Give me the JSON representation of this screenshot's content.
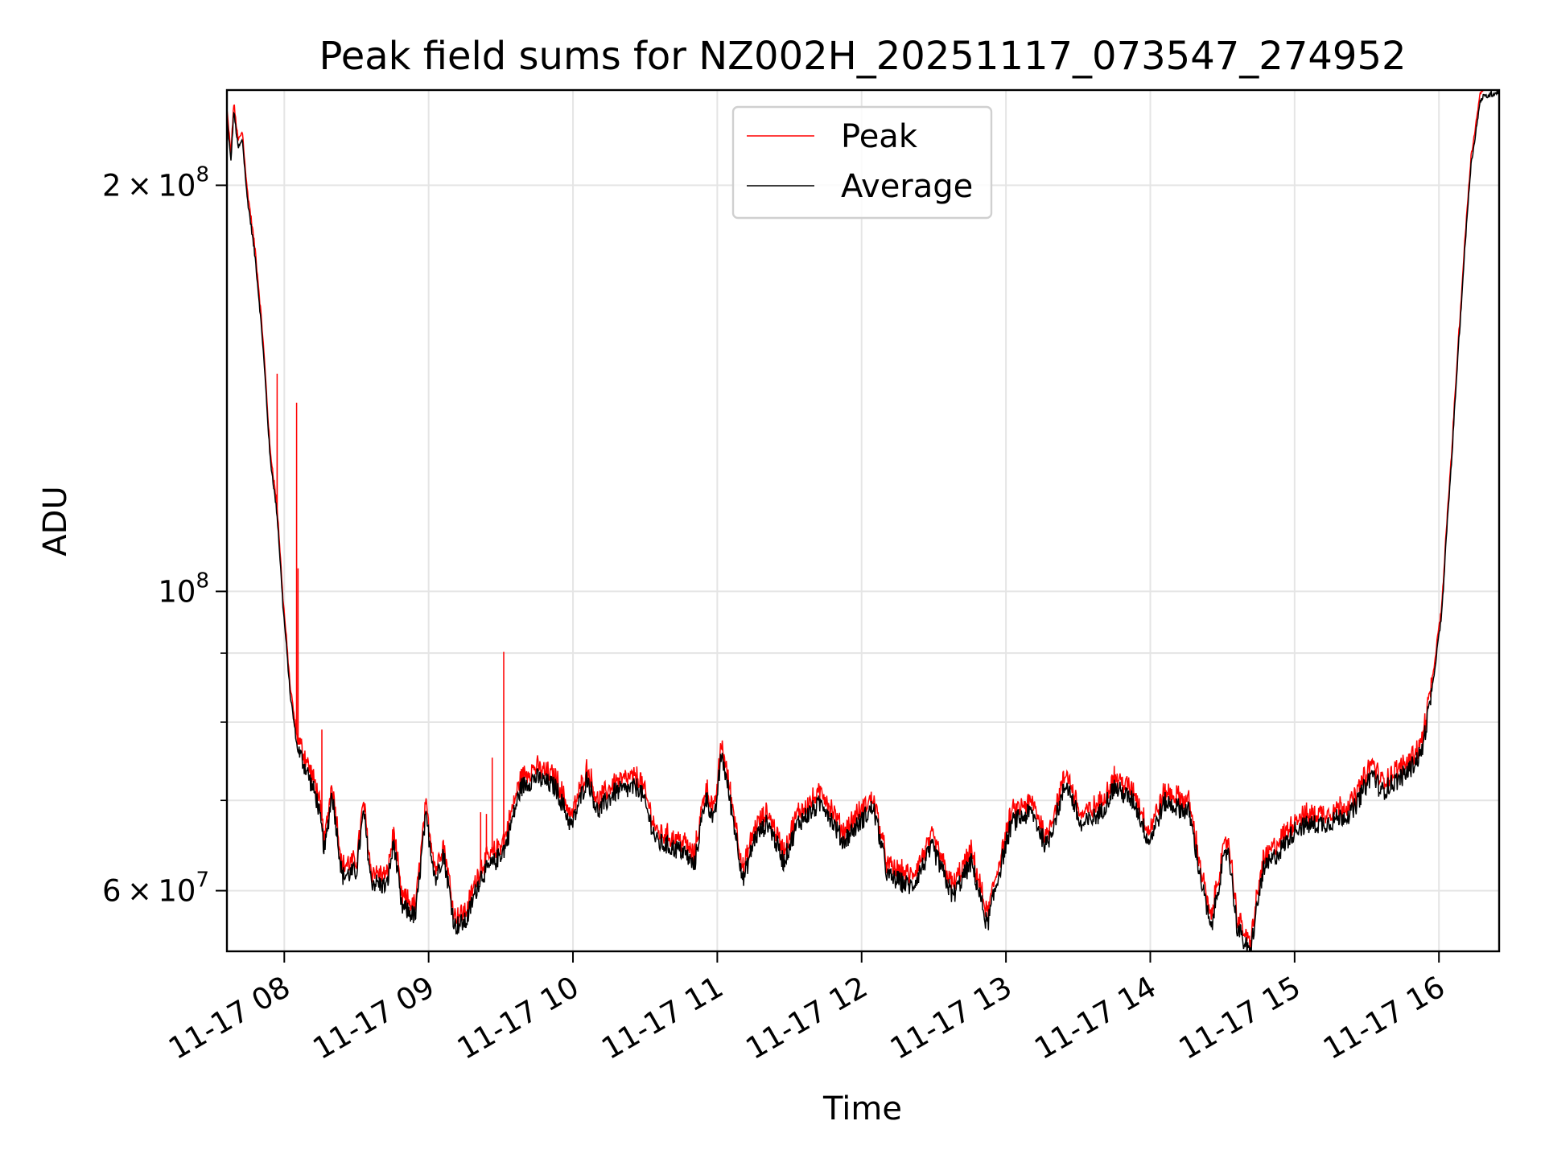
{
  "chart_data": {
    "type": "line",
    "title": "Peak field sums for NZ002H_20251117_073547_274952",
    "xlabel": "Time",
    "ylabel": "ADU",
    "yscale": "log",
    "x_unit": "hours (2025-11-17)",
    "xlim": [
      7.6025,
      16.417
    ],
    "ylim": [
      54100000,
      235300000
    ],
    "grid": true,
    "legend_position": "top-center",
    "x_ticks": [
      {
        "value": 8,
        "label": "11-17 08"
      },
      {
        "value": 9,
        "label": "11-17 09"
      },
      {
        "value": 10,
        "label": "11-17 10"
      },
      {
        "value": 11,
        "label": "11-17 11"
      },
      {
        "value": 12,
        "label": "11-17 12"
      },
      {
        "value": 13,
        "label": "11-17 13"
      },
      {
        "value": 14,
        "label": "11-17 14"
      },
      {
        "value": 15,
        "label": "11-17 15"
      },
      {
        "value": 16,
        "label": "11-17 16"
      }
    ],
    "y_ticks": [
      {
        "value": 200000000,
        "mantissa": "2",
        "base": "10",
        "exp": "8"
      },
      {
        "value": 100000000,
        "mantissa": "",
        "base": "10",
        "exp": "8"
      },
      {
        "value": 60000000,
        "mantissa": "6",
        "base": "10",
        "exp": "7"
      }
    ],
    "y_minor_gridlines": [
      70000000,
      80000000,
      90000000
    ],
    "series": [
      {
        "name": "Peak",
        "color": "#ff0000",
        "relative_to_average": 1.012,
        "spikes": [
          [
            7.95,
            145000000
          ],
          [
            8.085,
            138000000
          ],
          [
            8.095,
            104000000
          ],
          [
            8.26,
            79000000
          ],
          [
            9.36,
            68600000
          ],
          [
            9.4,
            68400000
          ],
          [
            9.44,
            75300000
          ],
          [
            9.52,
            90200000
          ]
        ]
      },
      {
        "name": "Average",
        "color": "#000000",
        "points": [
          [
            7.6,
            226
          ],
          [
            7.63,
            208
          ],
          [
            7.65,
            227
          ],
          [
            7.68,
            213
          ],
          [
            7.71,
            216
          ],
          [
            7.74,
            197
          ],
          [
            7.8,
            176
          ],
          [
            7.85,
            153
          ],
          [
            7.9,
            126
          ],
          [
            7.95,
            114
          ],
          [
            7.99,
            97.8
          ],
          [
            8.04,
            84
          ],
          [
            8.09,
            76.5
          ],
          [
            8.16,
            73.4
          ],
          [
            8.23,
            69.8
          ],
          [
            8.28,
            64.1
          ],
          [
            8.33,
            71
          ],
          [
            8.4,
            61.5
          ],
          [
            8.5,
            62
          ],
          [
            8.55,
            68.6
          ],
          [
            8.6,
            61
          ],
          [
            8.71,
            60.4
          ],
          [
            8.76,
            65.2
          ],
          [
            8.81,
            58.4
          ],
          [
            8.91,
            57.4
          ],
          [
            8.98,
            68
          ],
          [
            9.05,
            61
          ],
          [
            9.1,
            64.1
          ],
          [
            9.18,
            56.5
          ],
          [
            9.26,
            56.9
          ],
          [
            9.36,
            61.5
          ],
          [
            9.46,
            63
          ],
          [
            9.53,
            64.6
          ],
          [
            9.64,
            71.6
          ],
          [
            9.74,
            72.8
          ],
          [
            9.88,
            71.6
          ],
          [
            9.99,
            66.9
          ],
          [
            10.1,
            72.8
          ],
          [
            10.17,
            68.6
          ],
          [
            10.29,
            71
          ],
          [
            10.46,
            71.6
          ],
          [
            10.58,
            65.2
          ],
          [
            10.77,
            64.1
          ],
          [
            10.84,
            62.5
          ],
          [
            10.92,
            70.5
          ],
          [
            10.98,
            67.4
          ],
          [
            11.03,
            75.9
          ],
          [
            11.09,
            69.8
          ],
          [
            11.18,
            61
          ],
          [
            11.26,
            65.7
          ],
          [
            11.35,
            67.4
          ],
          [
            11.46,
            63
          ],
          [
            11.56,
            67.4
          ],
          [
            11.73,
            69.8
          ],
          [
            11.87,
            65.2
          ],
          [
            12.08,
            69.2
          ],
          [
            12.18,
            61.5
          ],
          [
            12.35,
            60.4
          ],
          [
            12.49,
            64.6
          ],
          [
            12.63,
            59.4
          ],
          [
            12.76,
            63
          ],
          [
            12.87,
            56.5
          ],
          [
            12.97,
            63
          ],
          [
            13.04,
            67.4
          ],
          [
            13.18,
            68.6
          ],
          [
            13.28,
            64.6
          ],
          [
            13.42,
            72.2
          ],
          [
            13.52,
            66.9
          ],
          [
            13.66,
            68.6
          ],
          [
            13.75,
            71.6
          ],
          [
            13.89,
            69.8
          ],
          [
            13.99,
            65.2
          ],
          [
            14.1,
            69.8
          ],
          [
            14.27,
            68.6
          ],
          [
            14.34,
            62
          ],
          [
            14.42,
            56
          ],
          [
            14.49,
            62
          ],
          [
            14.54,
            64.6
          ],
          [
            14.6,
            56.5
          ],
          [
            14.69,
            53.7
          ],
          [
            14.78,
            62
          ],
          [
            14.89,
            64.1
          ],
          [
            15.02,
            66.9
          ],
          [
            15.23,
            67.4
          ],
          [
            15.4,
            68.6
          ],
          [
            15.54,
            73.4
          ],
          [
            15.6,
            71
          ],
          [
            15.78,
            73.4
          ],
          [
            15.88,
            75.9
          ],
          [
            15.95,
            84
          ],
          [
            16.02,
            96.2
          ],
          [
            16.09,
            126
          ],
          [
            16.15,
            160
          ],
          [
            16.22,
            206
          ],
          [
            16.29,
            232
          ],
          [
            16.42,
            235
          ]
        ],
        "points_unit": "1e6 ADU"
      }
    ]
  }
}
